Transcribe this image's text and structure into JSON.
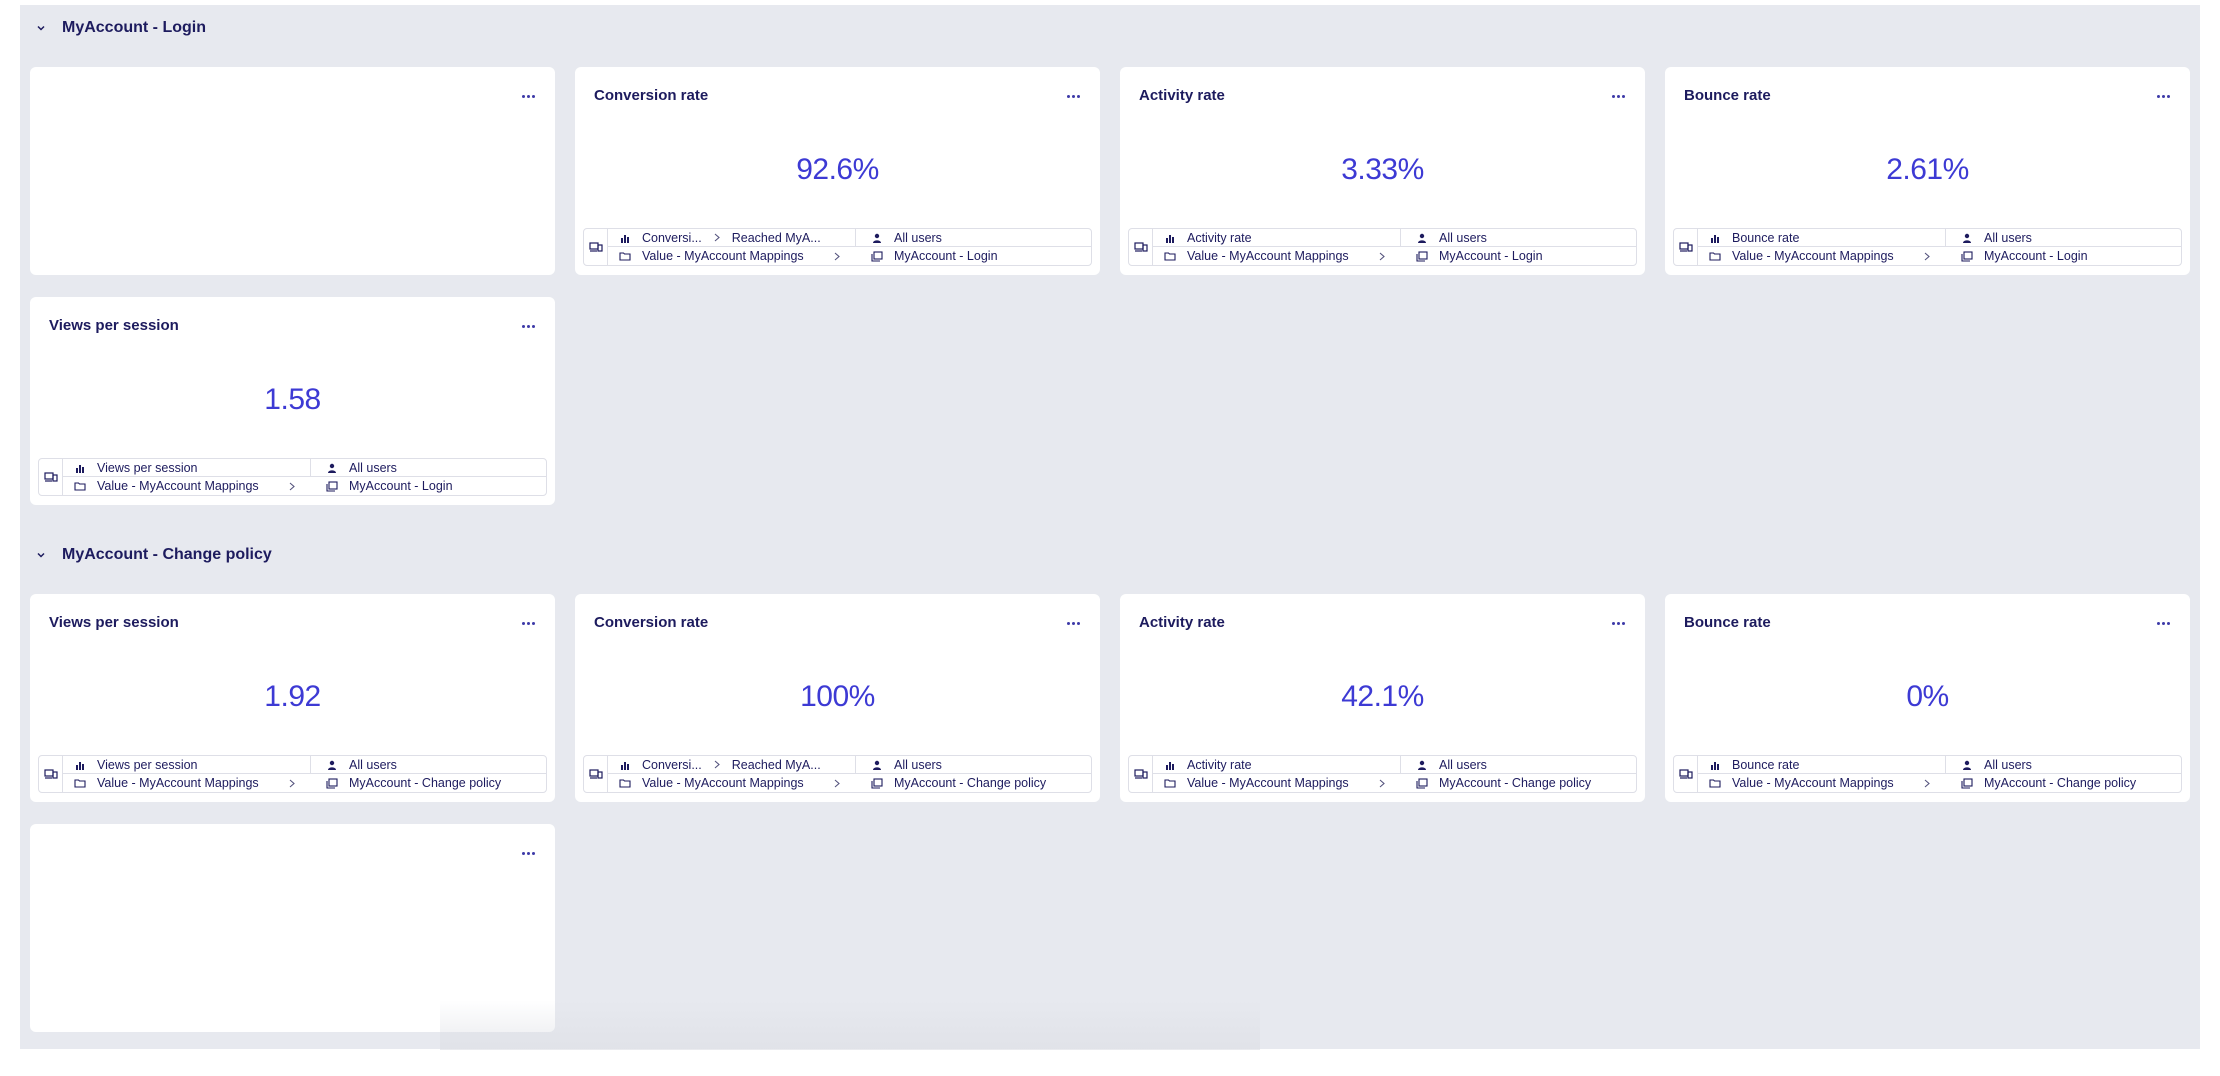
{
  "sections": [
    {
      "title": "MyAccount - Login",
      "cards": [
        {
          "title": "",
          "value": "",
          "empty": true
        },
        {
          "title": "Conversion rate",
          "value": "92.6%",
          "metric": "Conversi...",
          "metric2": "Reached MyA...",
          "segment": "All users",
          "folder": "Value - MyAccount Mappings",
          "page": "MyAccount - Login"
        },
        {
          "title": "Activity rate",
          "value": "3.33%",
          "metric": "Activity rate",
          "segment": "All users",
          "folder": "Value - MyAccount Mappings",
          "page": "MyAccount - Login"
        },
        {
          "title": "Bounce rate",
          "value": "2.61%",
          "metric": "Bounce rate",
          "segment": "All users",
          "folder": "Value - MyAccount Mappings",
          "page": "MyAccount - Login"
        },
        {
          "title": "Views per session",
          "value": "1.58",
          "metric": "Views per session",
          "segment": "All users",
          "folder": "Value - MyAccount Mappings",
          "page": "MyAccount - Login"
        }
      ]
    },
    {
      "title": "MyAccount - Change policy",
      "cards": [
        {
          "title": "Views per session",
          "value": "1.92",
          "metric": "Views per session",
          "segment": "All users",
          "folder": "Value - MyAccount Mappings",
          "page": "MyAccount - Change policy"
        },
        {
          "title": "Conversion rate",
          "value": "100%",
          "metric": "Conversi...",
          "metric2": "Reached MyA...",
          "segment": "All users",
          "folder": "Value - MyAccount Mappings",
          "page": "MyAccount - Change policy"
        },
        {
          "title": "Activity rate",
          "value": "42.1%",
          "metric": "Activity rate",
          "segment": "All users",
          "folder": "Value - MyAccount Mappings",
          "page": "MyAccount - Change policy"
        },
        {
          "title": "Bounce rate",
          "value": "0%",
          "metric": "Bounce rate",
          "segment": "All users",
          "folder": "Value - MyAccount Mappings",
          "page": "MyAccount - Change policy"
        },
        {
          "title": "",
          "value": "",
          "empty": true
        }
      ]
    }
  ],
  "colors": {
    "accent": "#3d3ad4",
    "text": "#1d1b5e",
    "background": "#e7e9ef",
    "card": "#ffffff"
  },
  "icons": {
    "section_toggle": "chevron-down-icon",
    "menu": "more-icon",
    "source": "device-icon",
    "metric": "bar-chart-icon",
    "segment": "user-icon",
    "folder": "folder-icon",
    "page": "page-icon",
    "separator": "chevron-right-icon"
  }
}
